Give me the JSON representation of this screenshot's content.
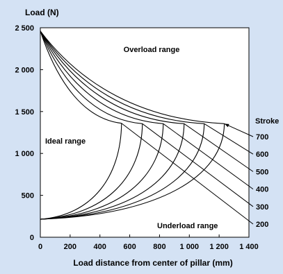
{
  "chart_data": {
    "type": "line",
    "ylabel": "Load (N)",
    "xlabel": "Load distance from center of pillar (mm)",
    "xlim": [
      0,
      1400
    ],
    "ylim": [
      0,
      2500
    ],
    "x_ticks": [
      0,
      200,
      400,
      600,
      800,
      1000,
      1200,
      1400
    ],
    "x_tick_labels": [
      "0",
      "200",
      "400",
      "600",
      "800",
      "1 000",
      "1 200",
      "1 400"
    ],
    "y_ticks": [
      0,
      500,
      1000,
      1500,
      2000,
      2500
    ],
    "y_tick_labels": [
      "0",
      "500",
      "1 000",
      "1 500",
      "2 000",
      "2 500"
    ],
    "grid": false,
    "legend_title": "Stroke",
    "regions": {
      "overload": "Overload range",
      "ideal": "Ideal range",
      "underload": "Underload range"
    },
    "start_point": {
      "x": 0,
      "y": 2460
    },
    "base_point": {
      "x": 0,
      "y": 215
    },
    "series": [
      {
        "name": "200",
        "corner": {
          "x": 545,
          "y": 1360
        }
      },
      {
        "name": "300",
        "corner": {
          "x": 685,
          "y": 1355
        }
      },
      {
        "name": "400",
        "corner": {
          "x": 825,
          "y": 1355
        }
      },
      {
        "name": "500",
        "corner": {
          "x": 965,
          "y": 1355
        }
      },
      {
        "name": "600",
        "corner": {
          "x": 1100,
          "y": 1355
        }
      },
      {
        "name": "700",
        "corner": {
          "x": 1235,
          "y": 1355
        }
      }
    ]
  }
}
